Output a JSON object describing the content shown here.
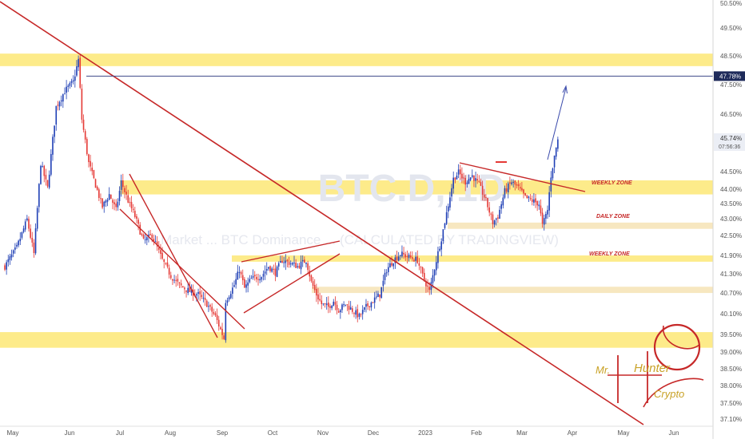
{
  "chart_data": {
    "type": "candlestick",
    "watermark": "BTC.D, 1D",
    "watermark_subtitle": "Market ... BTC Dominance ... (CALCULATED BY TRADINGVIEW)",
    "price_labels": {
      "current_level": "47.78%",
      "last_price": "45.74%",
      "countdown": "07:56:36"
    },
    "y_ticks": [
      "50.50%",
      "49.50%",
      "48.50%",
      "47.50%",
      "46.50%",
      "45.50%",
      "44.50%",
      "44.00%",
      "43.50%",
      "43.00%",
      "42.50%",
      "41.90%",
      "41.30%",
      "40.70%",
      "40.10%",
      "39.50%",
      "39.00%",
      "38.50%",
      "38.00%",
      "37.50%",
      "37.10%"
    ],
    "x_ticks": [
      "May",
      "Jun",
      "Jul",
      "Aug",
      "Sep",
      "Oct",
      "Nov",
      "Dec",
      "2023",
      "Feb",
      "Mar",
      "Apr",
      "May",
      "Jun"
    ],
    "zone_labels": {
      "weekly_upper": "WEEKLY ZONE",
      "daily": "DAILY ZONE",
      "weekly_lower": "WEEKLY ZONE"
    },
    "signature": [
      "Mr.",
      "Hunter",
      "Crypto"
    ],
    "colors": {
      "up": "#1f3fb5",
      "down": "#e53935",
      "zone_yellow": "#fdeb8a",
      "zone_pale": "#f7e7c0",
      "trendline": "#c62828",
      "arrow": "#3949ab",
      "level_line": "#3f4a8a"
    },
    "anchors": [
      [
        "2022-05-01",
        41.7
      ],
      [
        "2022-05-08",
        42.3
      ],
      [
        "2022-05-14",
        43.2
      ],
      [
        "2022-05-18",
        42.1
      ],
      [
        "2022-05-22",
        45.0
      ],
      [
        "2022-05-26",
        44.2
      ],
      [
        "2022-05-31",
        46.8
      ],
      [
        "2022-06-05",
        47.3
      ],
      [
        "2022-06-10",
        47.6
      ],
      [
        "2022-06-13",
        48.3
      ],
      [
        "2022-06-15",
        46.4
      ],
      [
        "2022-06-19",
        45.0
      ],
      [
        "2022-06-23",
        44.3
      ],
      [
        "2022-06-27",
        43.6
      ],
      [
        "2022-07-01",
        44.0
      ],
      [
        "2022-07-05",
        43.5
      ],
      [
        "2022-07-08",
        44.4
      ],
      [
        "2022-07-12",
        43.8
      ],
      [
        "2022-07-16",
        43.3
      ],
      [
        "2022-07-21",
        42.5
      ],
      [
        "2022-07-26",
        42.7
      ],
      [
        "2022-08-01",
        41.9
      ],
      [
        "2022-08-06",
        41.4
      ],
      [
        "2022-08-11",
        41.1
      ],
      [
        "2022-08-17",
        40.9
      ],
      [
        "2022-08-22",
        40.8
      ],
      [
        "2022-08-27",
        40.5
      ],
      [
        "2022-09-01",
        40.1
      ],
      [
        "2022-09-06",
        39.4
      ],
      [
        "2022-09-07",
        40.6
      ],
      [
        "2022-09-12",
        41.1
      ],
      [
        "2022-09-15",
        41.6
      ],
      [
        "2022-09-18",
        41.0
      ],
      [
        "2022-09-22",
        41.3
      ],
      [
        "2022-09-28",
        41.4
      ],
      [
        "2022-10-02",
        41.7
      ],
      [
        "2022-10-06",
        41.5
      ],
      [
        "2022-10-10",
        41.9
      ],
      [
        "2022-10-15",
        41.8
      ],
      [
        "2022-10-19",
        41.7
      ],
      [
        "2022-10-24",
        41.9
      ],
      [
        "2022-10-27",
        41.2
      ],
      [
        "2022-10-30",
        40.8
      ],
      [
        "2022-11-02",
        40.5
      ],
      [
        "2022-11-06",
        40.4
      ],
      [
        "2022-11-09",
        40.6
      ],
      [
        "2022-11-12",
        40.3
      ],
      [
        "2022-11-16",
        40.5
      ],
      [
        "2022-11-20",
        40.3
      ],
      [
        "2022-11-24",
        40.1
      ],
      [
        "2022-11-28",
        40.4
      ],
      [
        "2022-12-02",
        40.6
      ],
      [
        "2022-12-06",
        40.8
      ],
      [
        "2022-12-10",
        41.6
      ],
      [
        "2022-12-14",
        41.9
      ],
      [
        "2022-12-18",
        42.1
      ],
      [
        "2022-12-23",
        42.0
      ],
      [
        "2022-12-28",
        41.9
      ],
      [
        "2022-12-31",
        41.4
      ],
      [
        "2023-01-04",
        40.9
      ],
      [
        "2023-01-08",
        41.9
      ],
      [
        "2023-01-11",
        42.6
      ],
      [
        "2023-01-14",
        43.4
      ],
      [
        "2023-01-18",
        44.5
      ],
      [
        "2023-01-21",
        44.7
      ],
      [
        "2023-01-25",
        44.4
      ],
      [
        "2023-01-29",
        44.6
      ],
      [
        "2023-02-02",
        44.3
      ],
      [
        "2023-02-06",
        43.8
      ],
      [
        "2023-02-10",
        43.1
      ],
      [
        "2023-02-13",
        43.3
      ],
      [
        "2023-02-17",
        44.1
      ],
      [
        "2023-02-21",
        44.4
      ],
      [
        "2023-02-25",
        44.2
      ],
      [
        "2023-03-01",
        43.9
      ],
      [
        "2023-03-05",
        43.8
      ],
      [
        "2023-03-09",
        43.7
      ],
      [
        "2023-03-11",
        43.0
      ],
      [
        "2023-03-14",
        43.5
      ],
      [
        "2023-03-16",
        44.6
      ],
      [
        "2023-03-19",
        45.5
      ],
      [
        "2023-03-20",
        45.74
      ]
    ]
  }
}
